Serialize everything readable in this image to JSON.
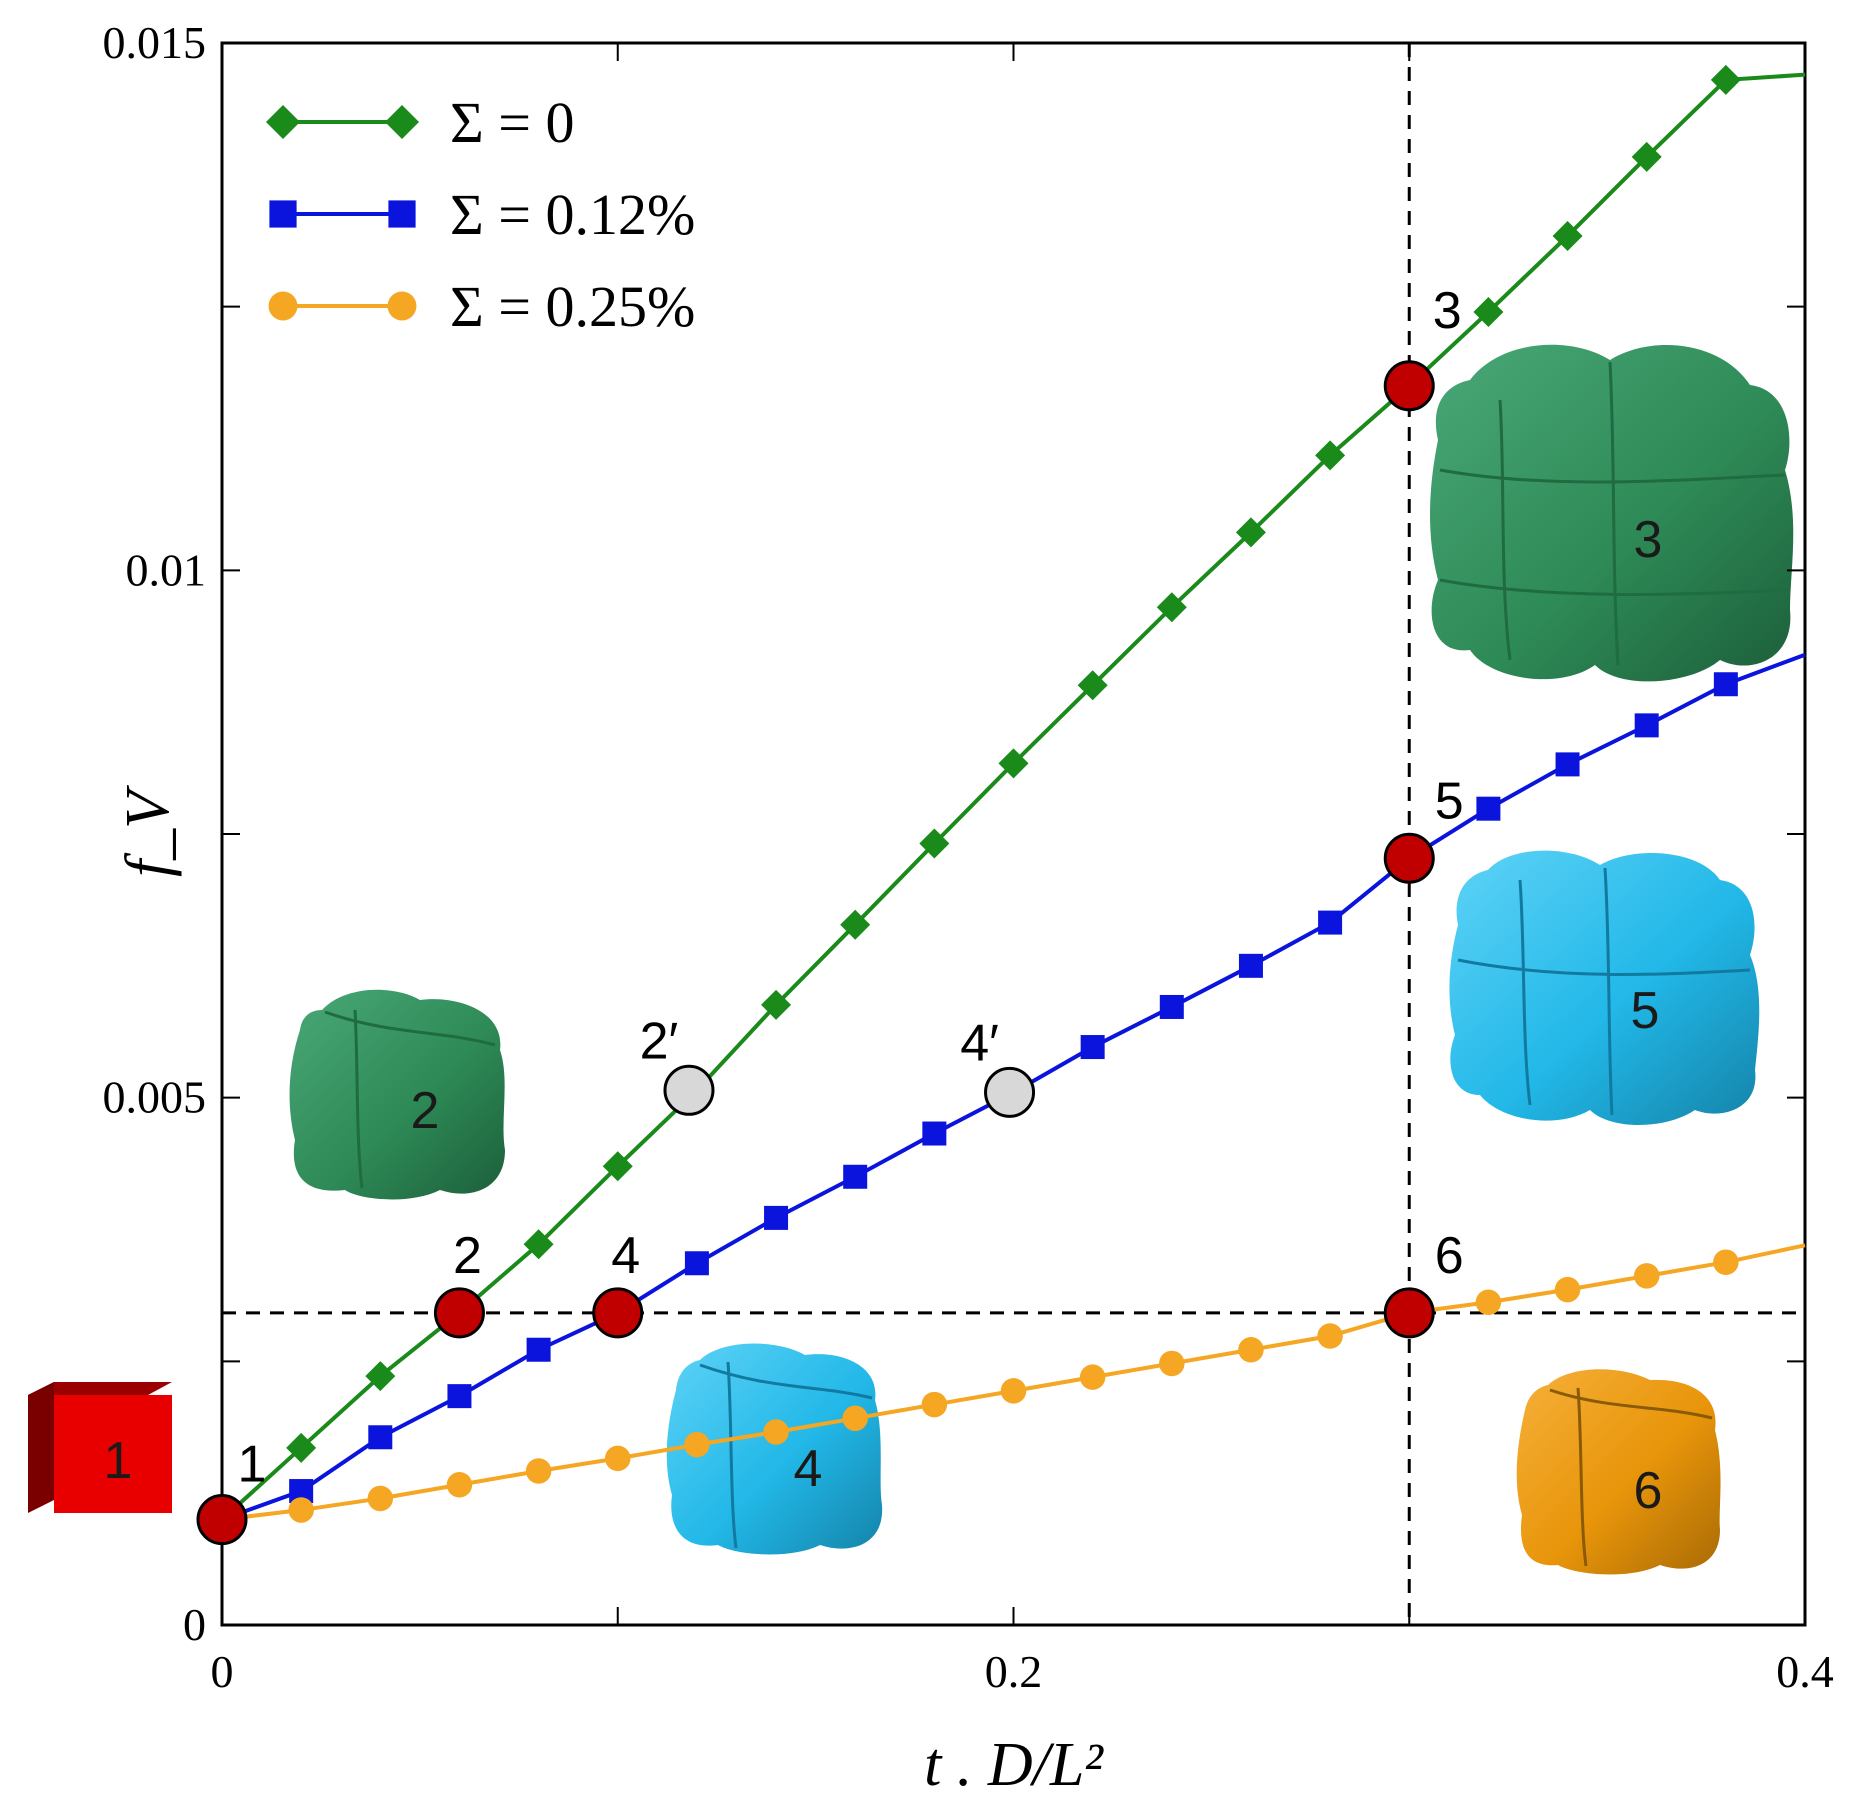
{
  "chart_data": {
    "type": "line",
    "xlabel": "t . D/L²",
    "ylabel": "f_V",
    "xlim": [
      0,
      0.4
    ],
    "ylim": [
      0,
      0.015
    ],
    "x_ticks": [
      "0",
      "0.2",
      "0.4"
    ],
    "y_ticks": [
      "0",
      "0.005",
      "0.01",
      "0.015"
    ],
    "grid": false,
    "legend_position": "top-left",
    "series": [
      {
        "name": "Σ = 0",
        "color": "#1a8a1a",
        "marker": "diamond",
        "x": [
          0,
          0.02,
          0.04,
          0.06,
          0.08,
          0.1,
          0.12,
          0.14,
          0.16,
          0.18,
          0.2,
          0.22,
          0.24,
          0.26,
          0.28,
          0.3,
          0.32,
          0.34,
          0.36,
          0.38,
          0.4
        ],
        "y": [
          0.001,
          0.00168,
          0.00236,
          0.00296,
          0.00361,
          0.00435,
          0.00507,
          0.00588,
          0.00664,
          0.00741,
          0.00817,
          0.00891,
          0.00965,
          0.01036,
          0.01109,
          0.01175,
          0.01245,
          0.01317,
          0.01392,
          0.01465,
          0.0147
        ]
      },
      {
        "name": "Σ = 0.12%",
        "color": "#0a14dc",
        "marker": "square",
        "x": [
          0,
          0.02,
          0.04,
          0.06,
          0.08,
          0.1,
          0.12,
          0.14,
          0.16,
          0.18,
          0.2,
          0.22,
          0.24,
          0.26,
          0.28,
          0.3,
          0.32,
          0.34,
          0.36,
          0.38,
          0.4
        ],
        "y": [
          0.001,
          0.00127,
          0.00178,
          0.00217,
          0.00261,
          0.00296,
          0.00343,
          0.00386,
          0.00425,
          0.00466,
          0.00505,
          0.00548,
          0.00586,
          0.00625,
          0.00666,
          0.00727,
          0.00774,
          0.00816,
          0.00853,
          0.00892,
          0.0092
        ]
      },
      {
        "name": "Σ = 0.25%",
        "color": "#f5a623",
        "marker": "circle",
        "x": [
          0,
          0.02,
          0.04,
          0.06,
          0.08,
          0.1,
          0.12,
          0.14,
          0.16,
          0.18,
          0.2,
          0.22,
          0.24,
          0.26,
          0.28,
          0.3,
          0.32,
          0.34,
          0.36,
          0.38,
          0.4
        ],
        "y": [
          0.001,
          0.00109,
          0.0012,
          0.00133,
          0.00146,
          0.00158,
          0.00171,
          0.00183,
          0.00196,
          0.00209,
          0.00222,
          0.00235,
          0.00248,
          0.00261,
          0.00274,
          0.00296,
          0.00306,
          0.00318,
          0.00331,
          0.00344,
          0.0036
        ]
      }
    ],
    "reference_lines": {
      "horizontal_y": 0.00296,
      "vertical_x": 0.3,
      "style": "dashed"
    },
    "highlight_points": [
      {
        "label": "1",
        "x": 0,
        "y": 0.001,
        "fill": "#c00000"
      },
      {
        "label": "2",
        "x": 0.06,
        "y": 0.00296,
        "fill": "#c00000"
      },
      {
        "label": "4",
        "x": 0.1,
        "y": 0.00296,
        "fill": "#c00000"
      },
      {
        "label": "3",
        "x": 0.3,
        "y": 0.01175,
        "fill": "#c00000"
      },
      {
        "label": "5",
        "x": 0.3,
        "y": 0.00727,
        "fill": "#c00000"
      },
      {
        "label": "6",
        "x": 0.3,
        "y": 0.00296,
        "fill": "#c00000"
      },
      {
        "label": "2′",
        "x": 0.118,
        "y": 0.00507,
        "fill": "#d8d8d8"
      },
      {
        "label": "4′",
        "x": 0.199,
        "y": 0.00505,
        "fill": "#d8d8d8"
      }
    ],
    "insets": [
      {
        "label": "1",
        "shape": "cube",
        "color": "#e00000"
      },
      {
        "label": "2",
        "shape": "blob",
        "color": "#2e8b57"
      },
      {
        "label": "3",
        "shape": "blob",
        "color": "#2e8b57"
      },
      {
        "label": "4",
        "shape": "blob",
        "color": "#22b8e8"
      },
      {
        "label": "5",
        "shape": "blob",
        "color": "#22b8e8"
      },
      {
        "label": "6",
        "shape": "blob",
        "color": "#e8950a"
      }
    ]
  }
}
